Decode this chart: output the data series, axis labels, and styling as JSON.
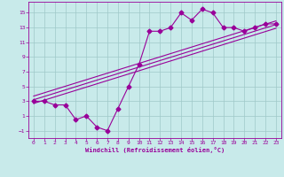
{
  "xlabel": "Windchill (Refroidissement éolien,°C)",
  "background_color": "#c8eaea",
  "grid_color": "#9fc8c8",
  "line_color": "#990099",
  "xlim": [
    -0.5,
    23.5
  ],
  "ylim": [
    -2.0,
    16.5
  ],
  "yticks": [
    -1,
    1,
    3,
    5,
    7,
    9,
    11,
    13,
    15
  ],
  "xticks": [
    0,
    1,
    2,
    3,
    4,
    5,
    6,
    7,
    8,
    9,
    10,
    11,
    12,
    13,
    14,
    15,
    16,
    17,
    18,
    19,
    20,
    21,
    22,
    23
  ],
  "main_line_x": [
    0,
    1,
    2,
    3,
    4,
    5,
    6,
    7,
    8,
    9,
    10,
    11,
    12,
    13,
    14,
    15,
    16,
    17,
    18,
    19,
    20,
    21,
    22,
    23
  ],
  "main_line_y": [
    3.0,
    3.0,
    2.5,
    2.5,
    0.5,
    1.0,
    -0.5,
    -1.0,
    2.0,
    5.0,
    8.0,
    12.5,
    12.5,
    13.0,
    15.0,
    14.0,
    15.5,
    15.0,
    13.0,
    13.0,
    12.5,
    13.0,
    13.5,
    13.5
  ],
  "ref_line1_x": [
    0,
    23
  ],
  "ref_line1_y": [
    3.2,
    13.4
  ],
  "ref_line2_x": [
    0,
    23
  ],
  "ref_line2_y": [
    2.7,
    12.9
  ],
  "ref_line3_x": [
    0,
    23
  ],
  "ref_line3_y": [
    3.7,
    13.9
  ],
  "marker": "D",
  "markersize": 2.5,
  "linewidth": 0.8
}
